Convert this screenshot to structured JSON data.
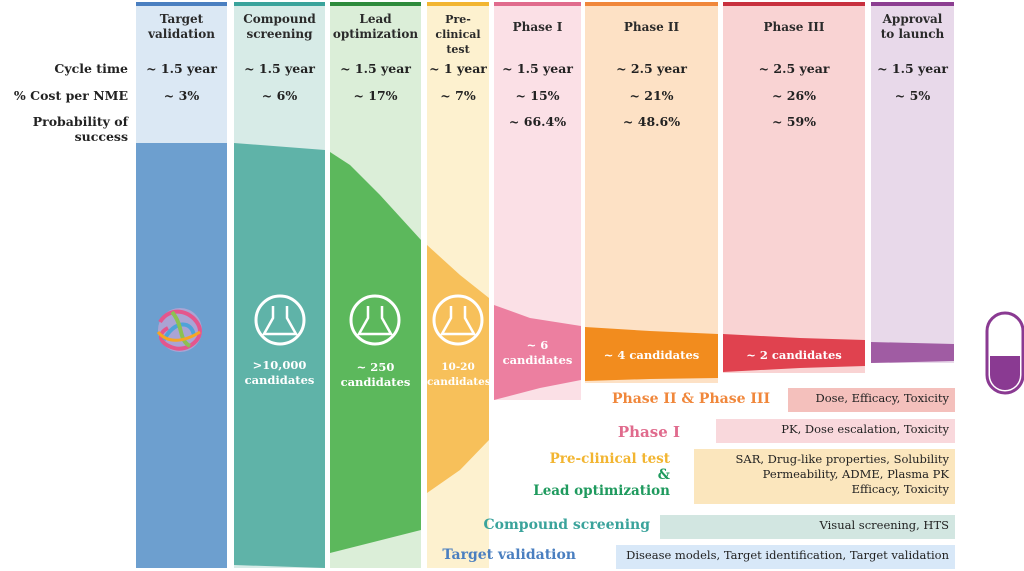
{
  "row_labels": {
    "cycle": "Cycle time",
    "cost": "% Cost per NME",
    "success": "Probability of success"
  },
  "stages": [
    {
      "name_line1": "Target",
      "name_line2": "validation",
      "cycle": "~ 1.5 year",
      "cost": "~ 3%",
      "success": "",
      "candidates_line1": "",
      "candidates_line2": "",
      "color": "#6d9fcf"
    },
    {
      "name_line1": "Compound",
      "name_line2": "screening",
      "cycle": "~ 1.5 year",
      "cost": "~ 6%",
      "success": "",
      "candidates_line1": ">10,000",
      "candidates_line2": "candidates",
      "color": "#5fb3a8"
    },
    {
      "name_line1": "Lead",
      "name_line2": "optimization",
      "cycle": "~ 1.5 year",
      "cost": "~ 17%",
      "success": "",
      "candidates_line1": "~ 250",
      "candidates_line2": "candidates",
      "color": "#5cb85c"
    },
    {
      "name_line1": "Pre-clinical",
      "name_line2": "test",
      "cycle": "~ 1 year",
      "cost": "~ 7%",
      "success": "",
      "candidates_line1": "10-20",
      "candidates_line2": "candidates",
      "color": "#f7c05a"
    },
    {
      "name_line1": "Phase I",
      "name_line2": "",
      "cycle": "~ 1.5 year",
      "cost": "~ 15%",
      "success": "~ 66.4%",
      "candidates_line1": "~ 6",
      "candidates_line2": "candidates",
      "color": "#ec7fa0"
    },
    {
      "name_line1": "Phase II",
      "name_line2": "",
      "cycle": "~ 2.5 year",
      "cost": "~ 21%",
      "success": "~ 48.6%",
      "candidates_line1": "~ 4 candidates",
      "candidates_line2": "",
      "color": "#f28c1e"
    },
    {
      "name_line1": "Phase III",
      "name_line2": "",
      "cycle": "~ 2.5 year",
      "cost": "~ 26%",
      "success": "~ 59%",
      "candidates_line1": "~ 2 candidates",
      "candidates_line2": "",
      "color": "#e0424f"
    },
    {
      "name_line1": "Approval",
      "name_line2": "to launch",
      "cycle": "~ 1.5 year",
      "cost": "~ 5%",
      "success": "",
      "candidates_line1": "",
      "candidates_line2": "",
      "color": "#a05ca3"
    }
  ],
  "legend": [
    {
      "title": "Phase II & Phase III",
      "desc_line1": "Dose, Efficacy, Toxicity",
      "desc_line2": "",
      "desc_line3": "",
      "title_color": "#f0873b",
      "box_color": "#f4c0bc"
    },
    {
      "title": "Phase I",
      "desc_line1": "PK, Dose escalation, Toxicity",
      "desc_line2": "",
      "desc_line3": "",
      "title_color": "#e06b8d",
      "box_color": "#f9d8dc"
    },
    {
      "title_line1": "Pre-clinical test",
      "title_amp": "&",
      "title_line2": "Lead optimization",
      "desc_line1": "SAR, Drug-like properties, Solubility",
      "desc_line2": "Permeability, ADME, Plasma PK",
      "desc_line3": "Efficacy, Toxicity",
      "title_color1": "#f2b531",
      "title_color2": "#1f9a5e",
      "box_color": "#fbe6bd"
    },
    {
      "title": "Compound screening",
      "desc_line1": "Visual screening, HTS",
      "desc_line2": "",
      "desc_line3": "",
      "title_color": "#3aa39b",
      "box_color": "#d2e6e1"
    },
    {
      "title": "Target validation",
      "desc_line1": "Disease models, Target identification, Target validation",
      "desc_line2": "",
      "desc_line3": "",
      "title_color": "#4a7fc0",
      "box_color": "#d8e8f8"
    }
  ]
}
